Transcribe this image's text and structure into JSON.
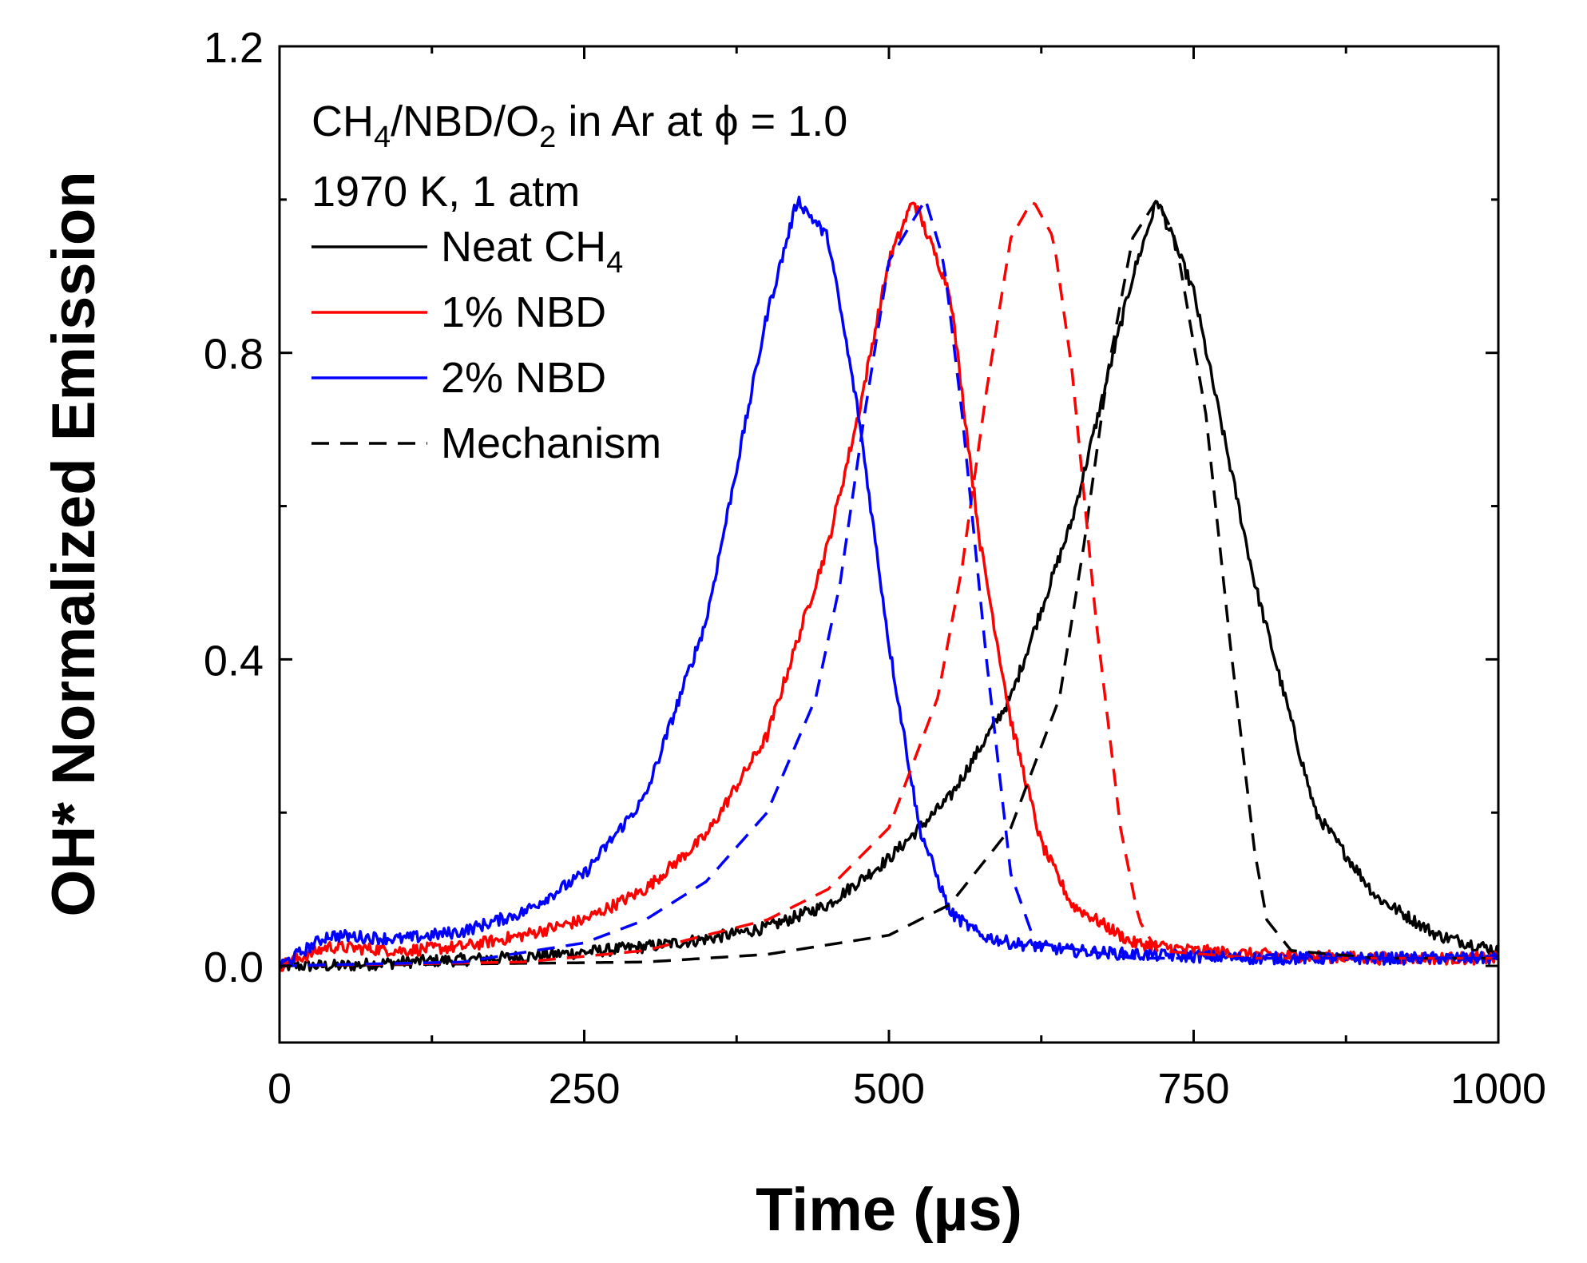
{
  "chart_data": {
    "type": "line",
    "title": "",
    "xlabel": "Time (µs)",
    "ylabel": "OH* Normalized Emission",
    "xlim": [
      0,
      1000
    ],
    "ylim": [
      -0.1,
      1.2
    ],
    "xticks": [
      0,
      250,
      500,
      750,
      1000
    ],
    "xtick_labels": [
      "0",
      "250",
      "500",
      "750",
      "1000"
    ],
    "yticks": [
      0.0,
      0.4,
      0.8,
      1.2
    ],
    "ytick_labels": [
      "0.0",
      "0.4",
      "0.8",
      "1.2"
    ],
    "annotations": {
      "condition_line1": {
        "main": "CH",
        "sub1": "4",
        "mid": "/NBD/O",
        "sub2": "2",
        "tail": " in Ar at ϕ = 1.0"
      },
      "condition_line2": "1970 K, 1 atm"
    },
    "legend": {
      "position": "top-left",
      "entries": [
        {
          "label": "Neat CH",
          "sub": "4",
          "color": "#000000",
          "style": "solid"
        },
        {
          "label": "1% NBD",
          "sub": "",
          "color": "#ff0000",
          "style": "solid"
        },
        {
          "label": "2% NBD",
          "sub": "",
          "color": "#0000ff",
          "style": "solid"
        },
        {
          "label": "Mechanism",
          "sub": "",
          "color": "#000000",
          "style": "dashed"
        }
      ]
    },
    "series": [
      {
        "name": "Neat CH4 (experiment)",
        "color": "#000000",
        "style": "solid",
        "x": [
          0,
          50,
          100,
          150,
          200,
          250,
          300,
          350,
          400,
          450,
          500,
          550,
          600,
          650,
          700,
          720,
          750,
          800,
          850,
          900,
          950,
          1000
        ],
        "y": [
          0.0,
          0.0,
          0.005,
          0.008,
          0.012,
          0.018,
          0.025,
          0.035,
          0.05,
          0.08,
          0.14,
          0.22,
          0.35,
          0.58,
          0.9,
          1.0,
          0.88,
          0.5,
          0.2,
          0.09,
          0.04,
          0.02
        ]
      },
      {
        "name": "1% NBD (experiment)",
        "color": "#ff0000",
        "style": "solid",
        "x": [
          0,
          40,
          100,
          150,
          200,
          250,
          300,
          350,
          400,
          450,
          475,
          500,
          520,
          550,
          575,
          600,
          625,
          650,
          700,
          750,
          800,
          900,
          1000
        ],
        "y": [
          0.0,
          0.025,
          0.02,
          0.025,
          0.04,
          0.06,
          0.1,
          0.17,
          0.3,
          0.55,
          0.72,
          0.92,
          1.0,
          0.88,
          0.55,
          0.32,
          0.16,
          0.08,
          0.03,
          0.02,
          0.015,
          0.01,
          0.01
        ]
      },
      {
        "name": "2% NBD (experiment)",
        "color": "#0000ff",
        "style": "solid",
        "x": [
          0,
          40,
          100,
          150,
          200,
          250,
          300,
          350,
          400,
          425,
          450,
          475,
          500,
          525,
          550,
          575,
          600,
          650,
          700,
          800,
          900,
          1000
        ],
        "y": [
          0.0,
          0.04,
          0.035,
          0.045,
          0.07,
          0.12,
          0.22,
          0.45,
          0.85,
          1.0,
          0.95,
          0.72,
          0.42,
          0.18,
          0.07,
          0.04,
          0.03,
          0.02,
          0.015,
          0.01,
          0.01,
          0.01
        ]
      },
      {
        "name": "Mechanism (Neat CH4)",
        "color": "#000000",
        "style": "dashed",
        "x": [
          0,
          300,
          400,
          500,
          550,
          600,
          640,
          660,
          680,
          700,
          720,
          735,
          760,
          780,
          800,
          810,
          830,
          900,
          1000
        ],
        "y": [
          0.0,
          0.005,
          0.015,
          0.04,
          0.08,
          0.18,
          0.35,
          0.55,
          0.78,
          0.95,
          1.0,
          0.95,
          0.72,
          0.42,
          0.15,
          0.06,
          0.02,
          0.01,
          0.01
        ]
      },
      {
        "name": "Mechanism (1% NBD)",
        "color": "#ff0000",
        "style": "dashed",
        "x": [
          0,
          200,
          300,
          400,
          450,
          500,
          540,
          560,
          580,
          600,
          618,
          635,
          650,
          670,
          690,
          705,
          720,
          800,
          1000
        ],
        "y": [
          0.0,
          0.005,
          0.02,
          0.06,
          0.1,
          0.18,
          0.35,
          0.52,
          0.75,
          0.95,
          1.0,
          0.95,
          0.78,
          0.45,
          0.18,
          0.06,
          0.02,
          0.01,
          0.01
        ]
      },
      {
        "name": "Mechanism (2% NBD)",
        "color": "#0000ff",
        "style": "dashed",
        "x": [
          0,
          150,
          250,
          300,
          350,
          400,
          440,
          460,
          480,
          500,
          530,
          545,
          560,
          580,
          600,
          620,
          700,
          1000
        ],
        "y": [
          0.0,
          0.005,
          0.03,
          0.06,
          0.11,
          0.2,
          0.35,
          0.5,
          0.72,
          0.92,
          1.0,
          0.92,
          0.72,
          0.4,
          0.12,
          0.03,
          0.01,
          0.01
        ]
      }
    ]
  }
}
